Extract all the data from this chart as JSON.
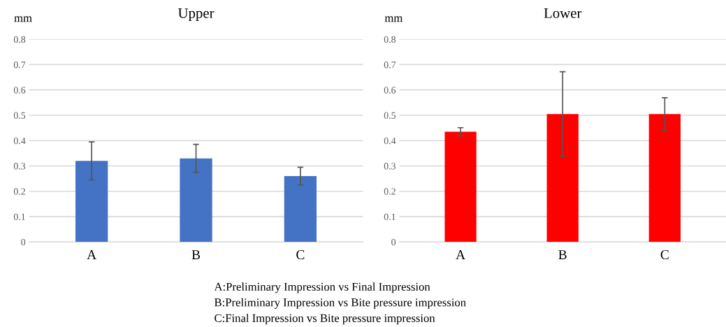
{
  "chart_data": [
    {
      "type": "bar",
      "title": "Upper",
      "ylabel": "mm",
      "categories": [
        "A",
        "B",
        "C"
      ],
      "values": [
        0.32,
        0.33,
        0.26
      ],
      "errors": [
        0.075,
        0.055,
        0.035
      ],
      "color": "#4472c4",
      "ylim": [
        0,
        0.8
      ],
      "yticks": [
        0,
        0.1,
        0.2,
        0.3,
        0.4,
        0.5,
        0.6,
        0.7,
        0.8
      ],
      "grid": "y",
      "annotations": [
        "A:Preliminary Impression vs Final Impression",
        "B:Preliminary Impression vs Bite pressure impression",
        "C:Final Impression vs Bite pressure impression"
      ]
    },
    {
      "type": "bar",
      "title": "Lower",
      "ylabel": "mm",
      "categories": [
        "A",
        "B",
        "C"
      ],
      "values": [
        0.435,
        0.505,
        0.505
      ],
      "errors": [
        0.016,
        0.167,
        0.064
      ],
      "color": "#ff0000",
      "ylim": [
        0,
        0.8
      ],
      "yticks": [
        0,
        0.1,
        0.2,
        0.3,
        0.4,
        0.5,
        0.6,
        0.7,
        0.8
      ],
      "grid": "y"
    }
  ]
}
